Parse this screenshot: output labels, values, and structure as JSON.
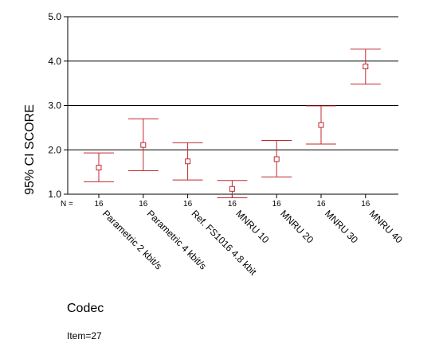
{
  "chart_data": {
    "type": "errorbar",
    "title": "",
    "ylabel": "95% CI SCORE",
    "xlabel": "Codec",
    "ylim": [
      1.0,
      5.0
    ],
    "yticks": [
      1.0,
      2.0,
      3.0,
      4.0,
      5.0
    ],
    "ytick_labels": [
      "1.0",
      "2.0",
      "3.0",
      "4.0",
      "5.0"
    ],
    "grid_y": [
      2.0,
      3.0,
      4.0
    ],
    "n_prefix": "N =",
    "categories": [
      "Parametric 2 kbit/s",
      "Parametric 4 kbit/s",
      "Ref. FS1016 4.8 kbit",
      "MNRU 10",
      "MNRU 20",
      "MNRU 30",
      "MNRU 40"
    ],
    "n": [
      "16",
      "16",
      "16",
      "16",
      "16",
      "16",
      "16"
    ],
    "mean": [
      1.6,
      2.11,
      1.74,
      1.12,
      1.79,
      2.56,
      3.88
    ],
    "lower": [
      1.28,
      1.53,
      1.32,
      0.92,
      1.39,
      2.13,
      3.48
    ],
    "upper": [
      1.93,
      2.7,
      2.16,
      1.31,
      2.21,
      2.99,
      4.27
    ],
    "footnote": "Item=27"
  },
  "colors": {
    "errorbar": "#c0282d",
    "axis": "#000000",
    "grid": "#000000"
  }
}
